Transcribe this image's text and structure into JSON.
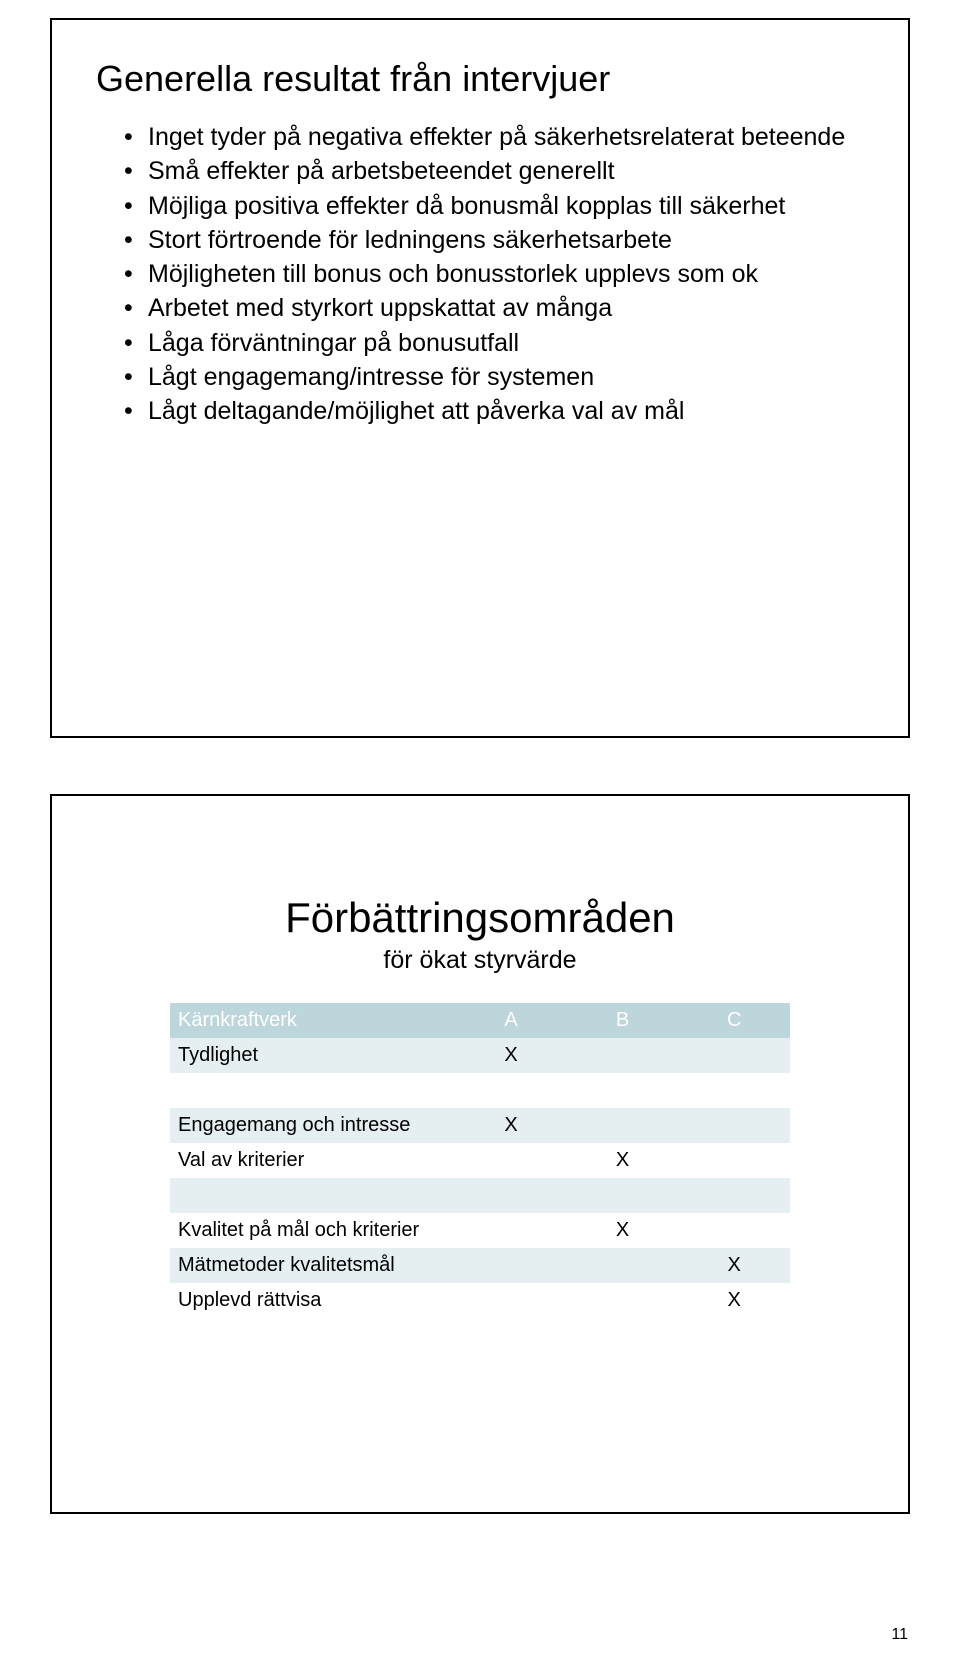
{
  "page_number": "11",
  "slide1": {
    "title": "Generella resultat från intervjuer",
    "bullets": [
      "Inget tyder på negativa effekter på säkerhetsrelaterat beteende",
      "Små effekter på arbetsbeteendet generellt",
      "Möjliga positiva effekter då bonusmål kopplas till säkerhet",
      "Stort förtroende för ledningens säkerhetsarbete",
      "Möjligheten till bonus och bonusstorlek upplevs som ok",
      "Arbetet med styrkort uppskattat av många",
      "Låga förväntningar på bonusutfall",
      "Lågt engagemang/intresse för systemen",
      "Lågt deltagande/möjlighet att påverka val av mål"
    ]
  },
  "slide2": {
    "title": "Förbättringsområden",
    "subtitle": "för ökat styrvärde",
    "table": {
      "header_row_color": "#bcd6dc",
      "band_color": "#e5eef1",
      "text_color": "#000000",
      "header_text_color": "#ffffff",
      "columns": [
        "Kärnkraftverk",
        "A",
        "B",
        "C"
      ],
      "rows": [
        {
          "label": "Tydlighet",
          "cells": [
            "X",
            "",
            ""
          ],
          "spacer_after": true
        },
        {
          "label": "Engagemang och intresse",
          "cells": [
            "X",
            "",
            ""
          ],
          "spacer_after": false
        },
        {
          "label": "Val av kriterier",
          "cells": [
            "",
            "X",
            ""
          ],
          "spacer_after": true
        },
        {
          "label": "Kvalitet på mål och kriterier",
          "cells": [
            "",
            "X",
            ""
          ],
          "spacer_after": false
        },
        {
          "label": "Mätmetoder kvalitetsmål",
          "cells": [
            "",
            "",
            "X"
          ],
          "spacer_after": false
        },
        {
          "label": "Upplevd rättvisa",
          "cells": [
            "",
            "",
            "X"
          ],
          "spacer_after": false
        }
      ]
    }
  }
}
